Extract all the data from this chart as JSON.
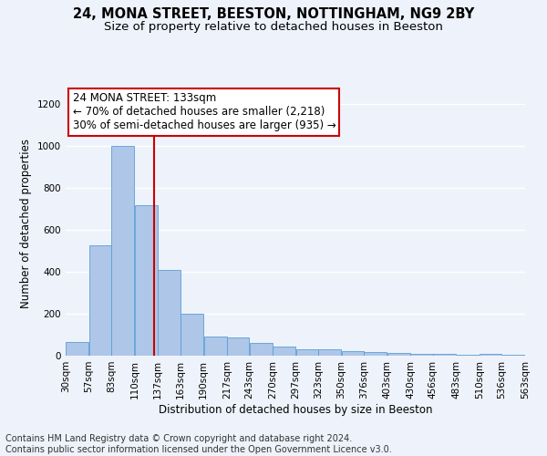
{
  "title_line1": "24, MONA STREET, BEESTON, NOTTINGHAM, NG9 2BY",
  "title_line2": "Size of property relative to detached houses in Beeston",
  "xlabel": "Distribution of detached houses by size in Beeston",
  "ylabel": "Number of detached properties",
  "footer_line1": "Contains HM Land Registry data © Crown copyright and database right 2024.",
  "footer_line2": "Contains public sector information licensed under the Open Government Licence v3.0.",
  "annotation_line1": "24 MONA STREET: 133sqm",
  "annotation_line2": "← 70% of detached houses are smaller (2,218)",
  "annotation_line3": "30% of semi-detached houses are larger (935) →",
  "bar_left_edges": [
    30,
    57,
    83,
    110,
    137,
    163,
    190,
    217,
    243,
    270,
    297,
    323,
    350,
    376,
    403,
    430,
    456,
    483,
    510,
    536
  ],
  "bar_widths": [
    27,
    26,
    27,
    27,
    26,
    27,
    27,
    26,
    27,
    27,
    26,
    27,
    26,
    27,
    27,
    26,
    27,
    27,
    26,
    27
  ],
  "bar_heights": [
    65,
    525,
    1000,
    715,
    410,
    198,
    90,
    88,
    60,
    42,
    32,
    30,
    20,
    18,
    15,
    10,
    8,
    6,
    10,
    4
  ],
  "bar_color": "#aec6e8",
  "bar_edge_color": "#5a9fd4",
  "vline_x": 133,
  "vline_color": "#cc0000",
  "ylim": [
    0,
    1260
  ],
  "yticks": [
    0,
    200,
    400,
    600,
    800,
    1000,
    1200
  ],
  "bg_color": "#eef2fa",
  "plot_bg_color": "#eef2fa",
  "grid_color": "#ffffff",
  "title_fontsize": 10.5,
  "subtitle_fontsize": 9.5,
  "axis_label_fontsize": 8.5,
  "tick_label_fontsize": 7.5,
  "footer_fontsize": 7.0,
  "annotation_fontsize": 8.5
}
